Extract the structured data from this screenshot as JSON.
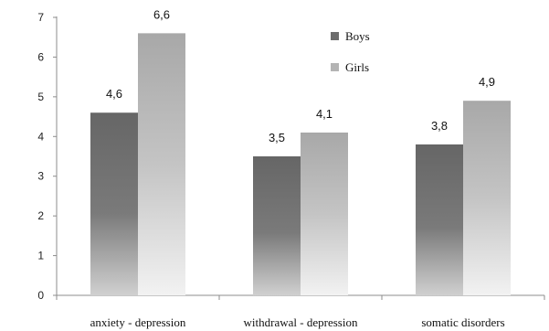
{
  "chart_data": {
    "type": "bar",
    "categories": [
      "anxiety - depression",
      "withdrawal - depression",
      "somatic disorders"
    ],
    "series": [
      {
        "name": "Boys",
        "values": [
          4.6,
          3.5,
          3.8
        ],
        "labels": [
          "4,6",
          "3,5",
          "3,8"
        ],
        "color": "#6d6d6d"
      },
      {
        "name": "Girls",
        "values": [
          6.6,
          4.1,
          4.9
        ],
        "labels": [
          "6,6",
          "4,1",
          "4,9"
        ],
        "color": "#b4b4b4"
      }
    ],
    "yticks": [
      "0",
      "1",
      "2",
      "3",
      "4",
      "5",
      "6",
      "7"
    ],
    "ylim": [
      0,
      7
    ],
    "legend_position": "top-center",
    "grid": false
  }
}
